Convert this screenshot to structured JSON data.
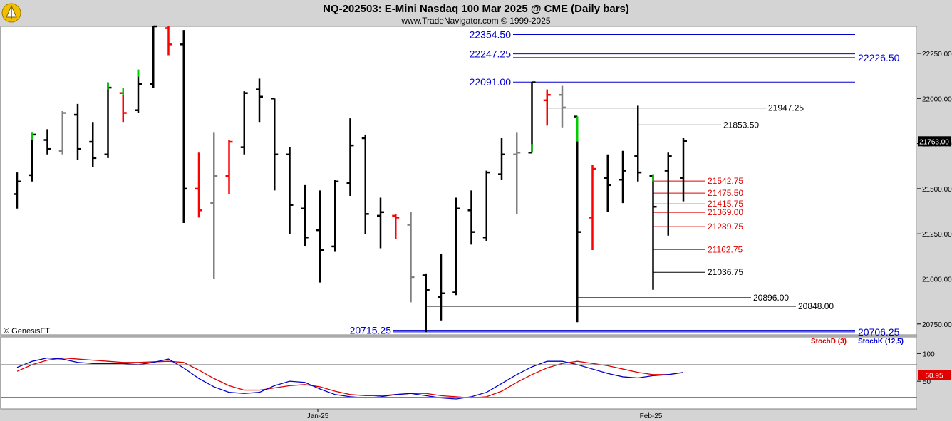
{
  "header": {
    "title": "NQ-202503:  E-Mini Nasdaq 100 Mar 2025 @ CME  (Daily bars)",
    "subtitle": "www.TradeNavigator.com © 1999-2025",
    "logo_icon": "trade-navigator-logo-icon"
  },
  "watermark": "© GenesisFT",
  "colors": {
    "up_bar": "#000000",
    "down_red": "#ff0000",
    "green": "#00cc00",
    "gray": "#808080",
    "blue_level": "#0000cc",
    "red_level": "#e00000",
    "stochD": "#e00000",
    "stochK": "#0000cc"
  },
  "chart_data": [
    {
      "type": "bar",
      "title": "NQ-202503:  E-Mini Nasdaq 100 Mar 2025 @ CME  (Daily bars)",
      "ylim": [
        20690,
        22400
      ],
      "y_ticks": [
        "20750.00",
        "21000.00",
        "21250.00",
        "21500.00",
        "21750.00",
        "22000.00",
        "22250.00"
      ],
      "y_tick_values": [
        20750,
        21000,
        21250,
        21500,
        21750,
        22000,
        22250
      ],
      "x_tick_labels": [
        "Jan-25",
        "Feb-25"
      ],
      "x_tick_bar_index": [
        20,
        42
      ],
      "last_price": "21763.00",
      "last_price_value": 21763,
      "bars": [
        {
          "h": 21590,
          "l": 21390,
          "o": 21470,
          "c": 21540,
          "color": "black"
        },
        {
          "h": 21810,
          "l": 21540,
          "o": 21575,
          "c": 21800,
          "color": "black",
          "accent": "green"
        },
        {
          "h": 21830,
          "l": 21690,
          "o": 21770,
          "c": 21720,
          "color": "black"
        },
        {
          "h": 21930,
          "l": 21690,
          "o": 21710,
          "c": 21920,
          "color": "gray"
        },
        {
          "h": 21970,
          "l": 21660,
          "o": 21910,
          "c": 21720,
          "color": "black"
        },
        {
          "h": 21870,
          "l": 21620,
          "o": 21760,
          "c": 21670,
          "color": "black"
        },
        {
          "h": 22090,
          "l": 21670,
          "o": 21690,
          "c": 22060,
          "color": "black",
          "accent": "green"
        },
        {
          "h": 22060,
          "l": 21870,
          "o": 22030,
          "c": 21920,
          "color": "red",
          "accent": "green"
        },
        {
          "h": 22160,
          "l": 21920,
          "o": 21935,
          "c": 22080,
          "color": "black",
          "accent": "green"
        },
        {
          "h": 22400,
          "l": 22060,
          "o": 22080,
          "c": 22400,
          "color": "black"
        },
        {
          "h": 22400,
          "l": 22240,
          "o": 22390,
          "c": 22300,
          "color": "red"
        },
        {
          "h": 22380,
          "l": 21310,
          "o": 22300,
          "c": 21500,
          "color": "black"
        },
        {
          "h": 21700,
          "l": 21340,
          "o": 21500,
          "c": 21380,
          "color": "red"
        },
        {
          "h": 21810,
          "l": 21000,
          "o": 21420,
          "c": 21570,
          "color": "gray"
        },
        {
          "h": 21770,
          "l": 21470,
          "o": 21570,
          "c": 21760,
          "color": "red"
        },
        {
          "h": 22040,
          "l": 21690,
          "o": 21730,
          "c": 22030,
          "color": "black"
        },
        {
          "h": 22110,
          "l": 21870,
          "o": 22050,
          "c": 22010,
          "color": "black"
        },
        {
          "h": 22000,
          "l": 21490,
          "o": 22000,
          "c": 21690,
          "color": "black"
        },
        {
          "h": 21730,
          "l": 21250,
          "o": 21690,
          "c": 21410,
          "color": "black"
        },
        {
          "h": 21520,
          "l": 21180,
          "o": 21390,
          "c": 21230,
          "color": "black"
        },
        {
          "h": 21490,
          "l": 20980,
          "o": 21270,
          "c": 21160,
          "color": "black"
        },
        {
          "h": 21550,
          "l": 21150,
          "o": 21180,
          "c": 21540,
          "color": "black"
        },
        {
          "h": 21890,
          "l": 21460,
          "o": 21530,
          "c": 21740,
          "color": "black"
        },
        {
          "h": 21800,
          "l": 21250,
          "o": 21780,
          "c": 21360,
          "color": "black"
        },
        {
          "h": 21450,
          "l": 21170,
          "o": 21350,
          "c": 21370,
          "color": "black"
        },
        {
          "h": 21360,
          "l": 21220,
          "o": 21350,
          "c": 21340,
          "color": "red"
        },
        {
          "h": 21370,
          "l": 20870,
          "o": 21300,
          "c": 21010,
          "color": "gray"
        },
        {
          "h": 21030,
          "l": 20705,
          "o": 21020,
          "c": 20940,
          "color": "black"
        },
        {
          "h": 21140,
          "l": 20770,
          "o": 20900,
          "c": 20920,
          "color": "black"
        },
        {
          "h": 21450,
          "l": 20910,
          "o": 20925,
          "c": 21390,
          "color": "black"
        },
        {
          "h": 21490,
          "l": 21190,
          "o": 21380,
          "c": 21260,
          "color": "black"
        },
        {
          "h": 21600,
          "l": 21210,
          "o": 21230,
          "c": 21590,
          "color": "black"
        },
        {
          "h": 21780,
          "l": 21550,
          "o": 21580,
          "c": 21690,
          "color": "black"
        },
        {
          "h": 21810,
          "l": 21360,
          "o": 21690,
          "c": 21700,
          "color": "gray"
        },
        {
          "h": 22090,
          "l": 21700,
          "o": 21700,
          "c": 22090,
          "color": "black",
          "accent": "green"
        },
        {
          "h": 22050,
          "l": 21850,
          "o": 21990,
          "c": 22020,
          "color": "red"
        },
        {
          "h": 22070,
          "l": 21840,
          "o": 22020,
          "c": 21950,
          "color": "gray"
        },
        {
          "h": 21900,
          "l": 20760,
          "o": 21900,
          "c": 21260,
          "color": "black",
          "accent": "green"
        },
        {
          "h": 21630,
          "l": 21160,
          "o": 21340,
          "c": 21610,
          "color": "red"
        },
        {
          "h": 21690,
          "l": 21370,
          "o": 21560,
          "c": 21520,
          "color": "black"
        },
        {
          "h": 21710,
          "l": 21420,
          "o": 21550,
          "c": 21600,
          "color": "black"
        },
        {
          "h": 21960,
          "l": 21540,
          "o": 21680,
          "c": 21590,
          "color": "black"
        },
        {
          "h": 21580,
          "l": 20940,
          "o": 21570,
          "c": 21400,
          "color": "black",
          "accent": "green"
        },
        {
          "h": 21700,
          "l": 21240,
          "o": 21600,
          "c": 21680,
          "color": "black"
        },
        {
          "h": 21780,
          "l": 21430,
          "o": 21560,
          "c": 21763,
          "color": "black"
        }
      ],
      "levels": [
        {
          "value": 22354.5,
          "label": "22354.50",
          "color": "blue",
          "from_bar": -1,
          "label_side": "left"
        },
        {
          "value": 22247.25,
          "label": "22247.25",
          "color": "blue",
          "from_bar": -1,
          "label_side": "left"
        },
        {
          "value": 22226.5,
          "label": "22226.50",
          "color": "blue",
          "from_bar": -1,
          "label_side": "right"
        },
        {
          "value": 22091.0,
          "label": "22091.00",
          "color": "blue",
          "from_bar": -1,
          "label_side": "left"
        },
        {
          "value": 21947.25,
          "label": "21947.25",
          "color": "black",
          "from_bar": 35,
          "label_side": "end"
        },
        {
          "value": 21853.5,
          "label": "21853.50",
          "color": "black",
          "from_bar": 41,
          "label_side": "end"
        },
        {
          "value": 21542.75,
          "label": "21542.75",
          "color": "red",
          "from_bar": 42,
          "label_side": "end"
        },
        {
          "value": 21475.5,
          "label": "21475.50",
          "color": "red",
          "from_bar": 42,
          "label_side": "end"
        },
        {
          "value": 21415.75,
          "label": "21415.75",
          "color": "red",
          "from_bar": 42,
          "label_side": "end"
        },
        {
          "value": 21369.0,
          "label": "21369.00",
          "color": "red",
          "from_bar": 42,
          "label_side": "end"
        },
        {
          "value": 21289.75,
          "label": "21289.75",
          "color": "red",
          "from_bar": 42,
          "label_side": "end"
        },
        {
          "value": 21162.75,
          "label": "21162.75",
          "color": "red",
          "from_bar": 42,
          "label_side": "end"
        },
        {
          "value": 21036.75,
          "label": "21036.75",
          "color": "black",
          "from_bar": 42,
          "label_side": "end"
        },
        {
          "value": 20896.0,
          "label": "20896.00",
          "color": "black",
          "from_bar": 37,
          "label_side": "end"
        },
        {
          "value": 20848.0,
          "label": "20848.00",
          "color": "black",
          "from_bar": 27,
          "label_side": "end"
        },
        {
          "value": 20715.25,
          "label": "20715.25",
          "color": "blue",
          "from_bar": -1,
          "label_side": "left"
        },
        {
          "value": 20706.25,
          "label": "20706.25",
          "color": "blue",
          "from_bar": -1,
          "label_side": "right"
        }
      ]
    },
    {
      "type": "line",
      "ylim": [
        0,
        130
      ],
      "y_ticks": [
        "100",
        "50"
      ],
      "y_tick_values": [
        100,
        50
      ],
      "reference_lines": [
        80,
        20
      ],
      "last_value": "60.95",
      "last_value_num": 60.95,
      "legend": [
        "StochD (3)",
        "StochK (12,5)"
      ],
      "series": [
        {
          "name": "StochD (3)",
          "color": "red",
          "values": [
            68,
            80,
            88,
            92,
            90,
            88,
            86,
            84,
            84,
            85,
            86,
            84,
            70,
            55,
            42,
            34,
            34,
            38,
            42,
            44,
            40,
            32,
            26,
            24,
            24,
            26,
            28,
            28,
            24,
            22,
            20,
            22,
            32,
            48,
            62,
            74,
            82,
            86,
            82,
            78,
            72,
            66,
            62,
            62,
            66
          ]
        },
        {
          "name": "StochK (12,5)",
          "color": "blue",
          "values": [
            75,
            86,
            92,
            90,
            84,
            82,
            82,
            82,
            80,
            84,
            90,
            74,
            55,
            40,
            30,
            28,
            30,
            42,
            50,
            48,
            36,
            26,
            22,
            20,
            22,
            26,
            28,
            24,
            20,
            18,
            22,
            30,
            46,
            62,
            76,
            86,
            86,
            80,
            72,
            64,
            58,
            56,
            60,
            62,
            66
          ]
        }
      ]
    }
  ]
}
